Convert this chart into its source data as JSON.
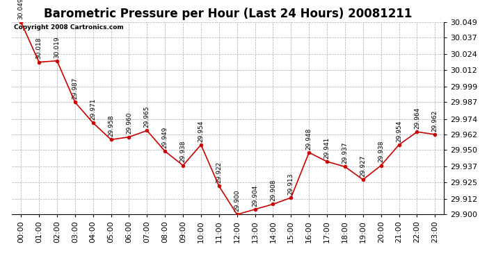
{
  "title": "Barometric Pressure per Hour (Last 24 Hours) 20081211",
  "copyright": "Copyright 2008 Cartronics.com",
  "hours": [
    "00:00",
    "01:00",
    "02:00",
    "03:00",
    "04:00",
    "05:00",
    "06:00",
    "07:00",
    "08:00",
    "09:00",
    "10:00",
    "11:00",
    "12:00",
    "13:00",
    "14:00",
    "15:00",
    "16:00",
    "17:00",
    "18:00",
    "19:00",
    "20:00",
    "21:00",
    "22:00",
    "23:00"
  ],
  "values": [
    30.049,
    30.018,
    30.019,
    29.987,
    29.971,
    29.958,
    29.96,
    29.965,
    29.949,
    29.938,
    29.954,
    29.922,
    29.9,
    29.904,
    29.908,
    29.913,
    29.948,
    29.941,
    29.937,
    29.927,
    29.938,
    29.954,
    29.964,
    29.962
  ],
  "line_color": "#cc0000",
  "marker_color": "#cc0000",
  "bg_color": "#ffffff",
  "grid_color": "#aaaaaa",
  "ylim_min": 29.9,
  "ylim_max": 30.049,
  "ytick_values": [
    29.9,
    29.912,
    29.925,
    29.937,
    29.95,
    29.962,
    29.974,
    29.987,
    29.999,
    30.012,
    30.024,
    30.037,
    30.049
  ],
  "title_fontsize": 12,
  "label_fontsize": 6.5,
  "tick_fontsize": 8,
  "copyright_fontsize": 6.5
}
